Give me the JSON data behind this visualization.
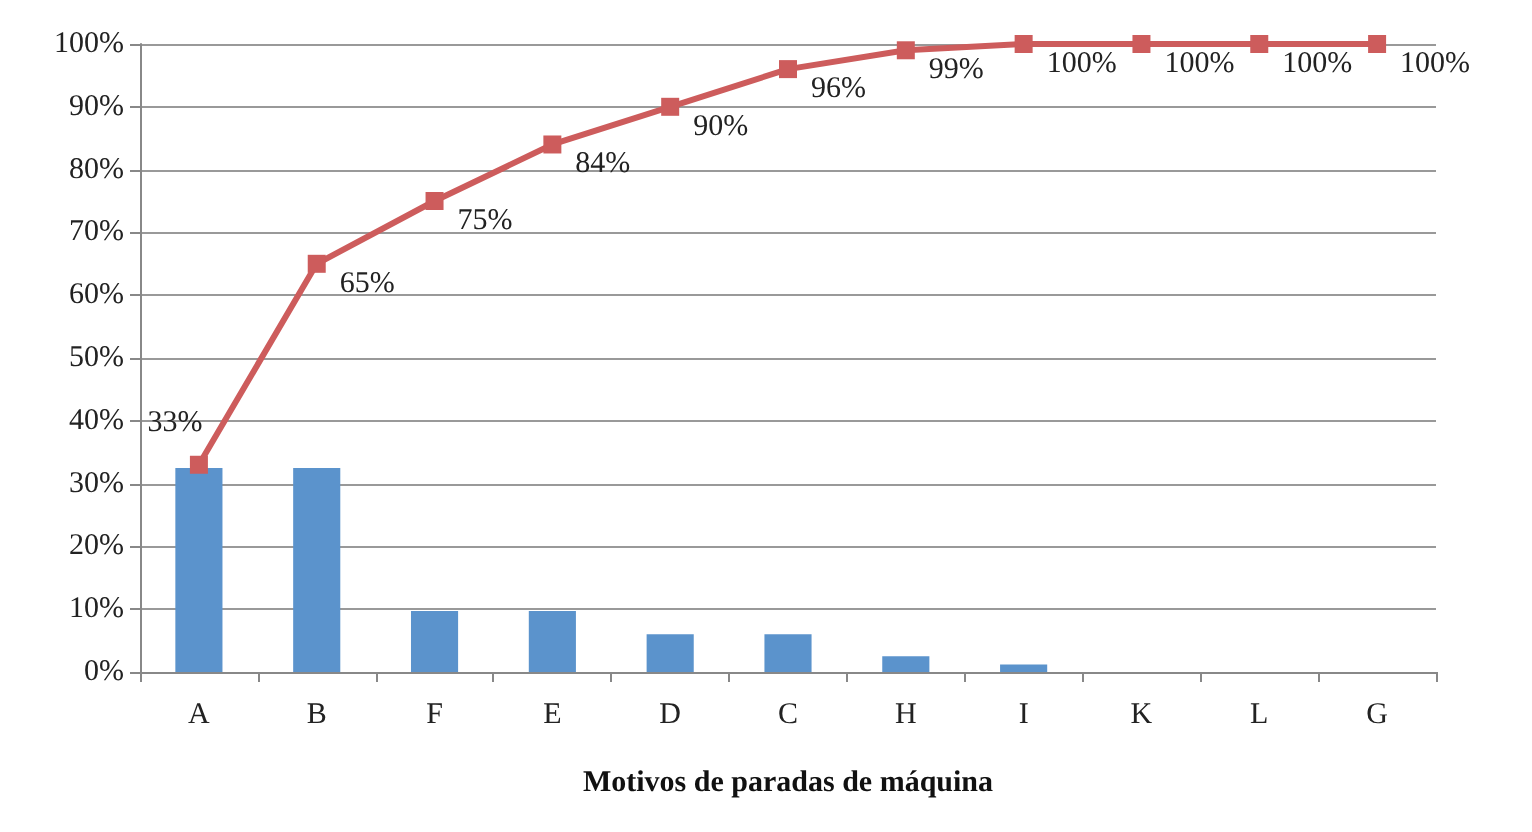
{
  "chart_data": {
    "type": "bar",
    "xlabel": "Motivos de paradas de máquina",
    "categories": [
      "A",
      "B",
      "F",
      "E",
      "D",
      "C",
      "H",
      "I",
      "K",
      "L",
      "G"
    ],
    "series": [
      {
        "color": "#5b93cc",
        "values": [
          32.5,
          32.5,
          9.7,
          9.7,
          6,
          6,
          2.5,
          1.2,
          0,
          0,
          0
        ]
      },
      {
        "type": "line",
        "color": "#cd5c5c",
        "values": [
          33,
          65,
          75,
          84,
          90,
          96,
          99,
          100,
          100,
          100,
          100
        ],
        "value_labels": [
          "33%",
          "65%",
          "75%",
          "84%",
          "90%",
          "96%",
          "99%",
          "100%",
          "100%",
          "100%",
          "100%"
        ]
      }
    ],
    "ylim": [
      0,
      100
    ],
    "yticks": [
      {
        "value": 0,
        "label": "0%"
      },
      {
        "value": 10,
        "label": "10%"
      },
      {
        "value": 20,
        "label": "20%"
      },
      {
        "value": 30,
        "label": "30%"
      },
      {
        "value": 40,
        "label": "40%"
      },
      {
        "value": 50,
        "label": "50%"
      },
      {
        "value": 60,
        "label": "60%"
      },
      {
        "value": 70,
        "label": "70%"
      },
      {
        "value": 80,
        "label": "80%"
      },
      {
        "value": 90,
        "label": "90%"
      },
      {
        "value": 100,
        "label": "100%"
      }
    ],
    "grid": "y",
    "marker": "square",
    "line_style": "solid"
  }
}
